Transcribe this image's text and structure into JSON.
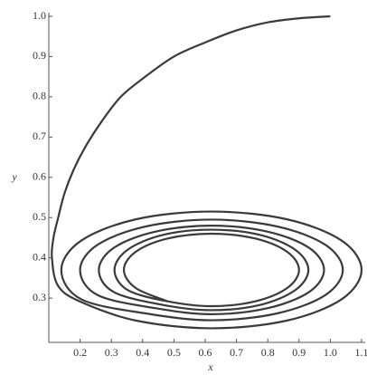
{
  "chart_data": {
    "type": "line",
    "x_label": "x",
    "y_label": "y",
    "xlim": [
      0.1,
      1.1
    ],
    "ylim": [
      0.19,
      1.0
    ],
    "xticks": [
      0.2,
      0.3,
      0.4,
      0.5,
      0.6,
      0.7,
      0.8,
      0.9,
      {
        "value": 1,
        "label": "1.0"
      },
      1.1
    ],
    "yticks": [
      0.3,
      0.4,
      0.5,
      0.6,
      0.7,
      0.8,
      0.9,
      {
        "value": 1,
        "label": "1.0"
      }
    ],
    "series": [
      {
        "color": "#3a3a3a",
        "x": [
          1.0,
          0.9,
          0.8,
          0.7,
          0.6,
          0.5,
          0.4,
          0.33,
          0.27,
          0.22,
          0.18,
          0.15,
          0.13,
          0.115,
          0.11,
          0.13,
          0.204,
          0.38,
          0.62,
          0.86,
          1.036,
          1.1,
          1.036,
          0.86,
          0.62,
          0.38,
          0.204,
          0.14,
          0.204,
          0.41,
          0.62,
          0.83,
          0.984,
          1.04,
          0.984,
          0.83,
          0.62,
          0.41,
          0.256,
          0.2,
          0.256,
          0.44,
          0.62,
          0.8,
          0.932,
          0.98,
          0.932,
          0.8,
          0.62,
          0.44,
          0.308,
          0.26,
          0.308,
          0.465,
          0.62,
          0.775,
          0.888,
          0.93,
          0.888,
          0.775,
          0.62,
          0.465,
          0.352,
          0.31,
          0.352,
          0.48,
          0.62,
          0.76,
          0.862,
          0.9,
          0.862,
          0.76,
          0.62,
          0.48,
          0.378,
          0.34,
          0.378,
          0.48
        ],
        "values": [
          1.0,
          0.995,
          0.985,
          0.965,
          0.935,
          0.9,
          0.845,
          0.8,
          0.74,
          0.68,
          0.62,
          0.56,
          0.5,
          0.45,
          0.4,
          0.33,
          0.29,
          0.244,
          0.225,
          0.244,
          0.297,
          0.37,
          0.443,
          0.496,
          0.515,
          0.496,
          0.443,
          0.37,
          0.297,
          0.262,
          0.245,
          0.262,
          0.3075,
          0.37,
          0.4325,
          0.478,
          0.495,
          0.478,
          0.4325,
          0.37,
          0.3075,
          0.275,
          0.26,
          0.275,
          0.315,
          0.37,
          0.425,
          0.465,
          0.48,
          0.465,
          0.425,
          0.37,
          0.315,
          0.283,
          0.27,
          0.283,
          0.32,
          0.37,
          0.42,
          0.457,
          0.47,
          0.457,
          0.42,
          0.37,
          0.32,
          0.292,
          0.28,
          0.292,
          0.325,
          0.37,
          0.415,
          0.448,
          0.46,
          0.448,
          0.415,
          0.37,
          0.325,
          0.292
        ]
      }
    ]
  }
}
